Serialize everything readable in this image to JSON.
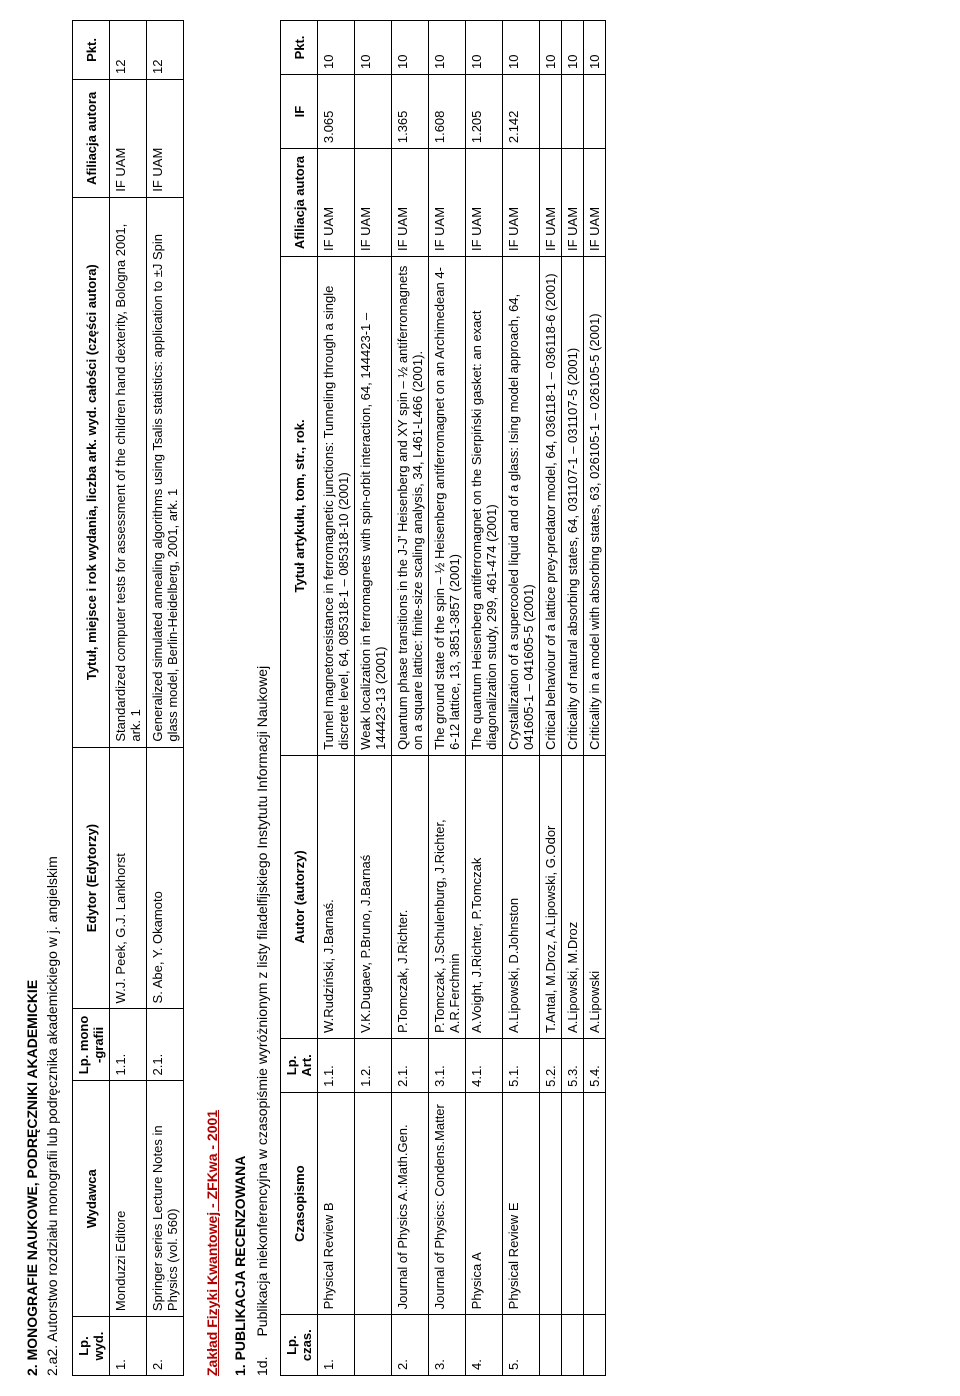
{
  "section2": {
    "heading": "2. MONOGRAFIE NAUKOWE, PODRĘCZNIKI AKADEMICKIE",
    "subheading": "2.a2. Autorstwo rozdziału monografii lub podręcznika akademickiego w j. angielskim",
    "columns": [
      "Lp. wyd.",
      "Wydawca",
      "Lp. mono -grafii",
      "Edytor (Edytorzy)",
      "Tytuł, miejsce i rok wydania, liczba ark. wyd. całości (części autora)",
      "Afiliacja autora",
      "Pkt."
    ],
    "rows": [
      {
        "lp": "1.",
        "wydawca": "Monduzzi Editore",
        "lpm": "1.1.",
        "edytor": "W.J. Peek, G.J. Lankhorst",
        "tytul": "Standardized computer tests for assessment of the children hand dexterity, Bologna 2001, ark. 1",
        "afil": "IF UAM",
        "pkt": "12"
      },
      {
        "lp": "2.",
        "wydawca": "Springer series Lecture Notes in Physics (vol. 560)",
        "lpm": "2.1.",
        "edytor": "S. Abe, Y. Okamoto",
        "tytul": "Generalized simulated annealing algorithms using Tsalis statistics: application to ±J Spin glass model, Berlin-Heidelberg, 2001, ark. 1",
        "afil": "IF UAM",
        "pkt": "12"
      }
    ]
  },
  "dept": "Zakład Fizyki Kwantowej - ZFKwa - 2001",
  "section1": {
    "heading": "1. PUBLIKACJA RECENZOWANA",
    "label_prefix": "1d.",
    "label": "Publikacja niekonferencyjna w czasopiśmie wyróżnionym z listy filadelfijskiego Instytutu Informacji Naukowej",
    "columns": [
      "Lp. czas.",
      "Czasopismo",
      "Lp. Art.",
      "Autor (autorzy)",
      "Tytuł artykułu, tom, str., rok.",
      "Afiliacja autora",
      "IF",
      "Pkt."
    ],
    "rows": [
      {
        "lp": "1.",
        "czas": "Physical Review B",
        "lpa": "1.1.",
        "autor": "W.Rudziński, J.Barnaś.",
        "tytul": "Tunnel magnetoresistance in ferromagnetic junctions: Tunneling through a single discrete level, 64, 085318-1 – 085318-10 (2001)",
        "afil": "IF UAM",
        "if": "3.065",
        "pkt": "10"
      },
      {
        "lp": "",
        "czas": "",
        "lpa": "1.2.",
        "autor": "V.K.Dugaev, P.Bruno, J.Barnaś",
        "tytul": "Weak localization in ferromagnets with spin-orbit interaction, 64, 144423-1 – 144423-13 (2001)",
        "afil": "IF UAM",
        "if": "",
        "pkt": "10"
      },
      {
        "lp": "2.",
        "czas": "Journal of Physics A.:Math.Gen.",
        "lpa": "2.1.",
        "autor": "P.Tomczak, J.Richter.",
        "tytul": "Quantum phase transitions in the J-J' Heisenberg and XY spin – ½ antiferromagnets on a square lattice: finite-size scaling analysis, 34, L461-L466 (2001).",
        "afil": "IF UAM",
        "if": "1.365",
        "pkt": "10"
      },
      {
        "lp": "3.",
        "czas": "Journal of Physics: Condens.Matter",
        "lpa": "3.1.",
        "autor": "P.Tomczak, J.Schulenburg, J.Richter, A.R.Ferchmin",
        "tytul": "The ground state of the spin – ½ Heisenberg antiferromagnet on an Archimedean 4-6-12 lattice, 13, 3851-3857 (2001)",
        "afil": "IF UAM",
        "if": "1.608",
        "pkt": "10"
      },
      {
        "lp": "4.",
        "czas": "Physica A",
        "lpa": "4.1.",
        "autor": "A.Voight, J.Richter, P.Tomczak",
        "tytul": "The quantum Heisenberg antiferromagnet on the Sierpiński gasket: an exact diagonalization study, 299, 461-474 (2001)",
        "afil": "IF UAM",
        "if": "1.205",
        "pkt": "10"
      },
      {
        "lp": "5.",
        "czas": "Physical Review E",
        "lpa": "5.1.",
        "autor": "A.Lipowski, D.Johnston",
        "tytul": "Crystallization of a supercooled liquid and of a glass: Ising model approach, 64, 041605-1 – 041605-5 (2001)",
        "afil": "IF UAM",
        "if": "2.142",
        "pkt": "10"
      },
      {
        "lp": "",
        "czas": "",
        "lpa": "5.2.",
        "autor": "T.Antal, M.Droz, A.Lipowski, G.Odor",
        "tytul": "Critical behaviour of a lattice prey-predator model, 64, 036118-1 – 036118-6 (2001)",
        "afil": "IF UAM",
        "if": "",
        "pkt": "10"
      },
      {
        "lp": "",
        "czas": "",
        "lpa": "5.3.",
        "autor": "A.Lipowski, M.Droz",
        "tytul": "Criticality of natural absorbing states, 64, 031107-1 – 031107-5 (2001)",
        "afil": "IF UAM",
        "if": "",
        "pkt": "10"
      },
      {
        "lp": "",
        "czas": "",
        "lpa": "5.4.",
        "autor": "A.Lipowski",
        "tytul": "Criticality in a model with absorbing states, 63, 026105-1 – 026105-5 (2001)",
        "afil": "IF UAM",
        "if": "",
        "pkt": "10"
      }
    ]
  }
}
